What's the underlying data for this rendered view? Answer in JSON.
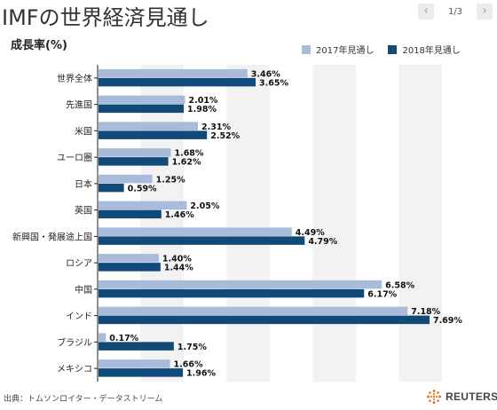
{
  "title": "IMFの世界経済見通し",
  "pager": {
    "prev_icon": "‹",
    "next_icon": "›",
    "counter": "1/3"
  },
  "source": "出典：トムソンロイター・データストリーム",
  "brand": "REUTERS",
  "chart_data": {
    "type": "bar",
    "orientation": "horizontal",
    "title": "",
    "ylabel": "成長率(%)",
    "xlabel": "",
    "xlim": [
      0,
      9
    ],
    "grid": "alternating vertical bands",
    "legend": "top-right",
    "categories": [
      "世界全体",
      "先進国",
      "米国",
      "ユーロ圏",
      "日本",
      "英国",
      "新興国・発展途上国",
      "ロシア",
      "中国",
      "インド",
      "ブラジル",
      "メキシコ"
    ],
    "series": [
      {
        "name": "2017年見通し",
        "color": "#a9bbdb",
        "values": [
          3.46,
          2.01,
          2.31,
          1.68,
          1.25,
          2.05,
          4.49,
          1.4,
          6.58,
          7.18,
          0.17,
          1.66
        ],
        "labels": [
          "3.46%",
          "2.01%",
          "2.31%",
          "1.68%",
          "1.25%",
          "2.05%",
          "4.49%",
          "1.40%",
          "6.58%",
          "7.18%",
          "0.17%",
          "1.66%"
        ]
      },
      {
        "name": "2018年見通し",
        "color": "#0f4a78",
        "values": [
          3.65,
          1.98,
          2.52,
          1.62,
          0.59,
          1.46,
          4.79,
          1.44,
          6.17,
          7.69,
          1.75,
          1.96
        ],
        "labels": [
          "3.65%",
          "1.98%",
          "2.52%",
          "1.62%",
          "0.59%",
          "1.46%",
          "4.79%",
          "1.44%",
          "6.17%",
          "7.69%",
          "1.75%",
          "1.96%"
        ]
      }
    ]
  }
}
